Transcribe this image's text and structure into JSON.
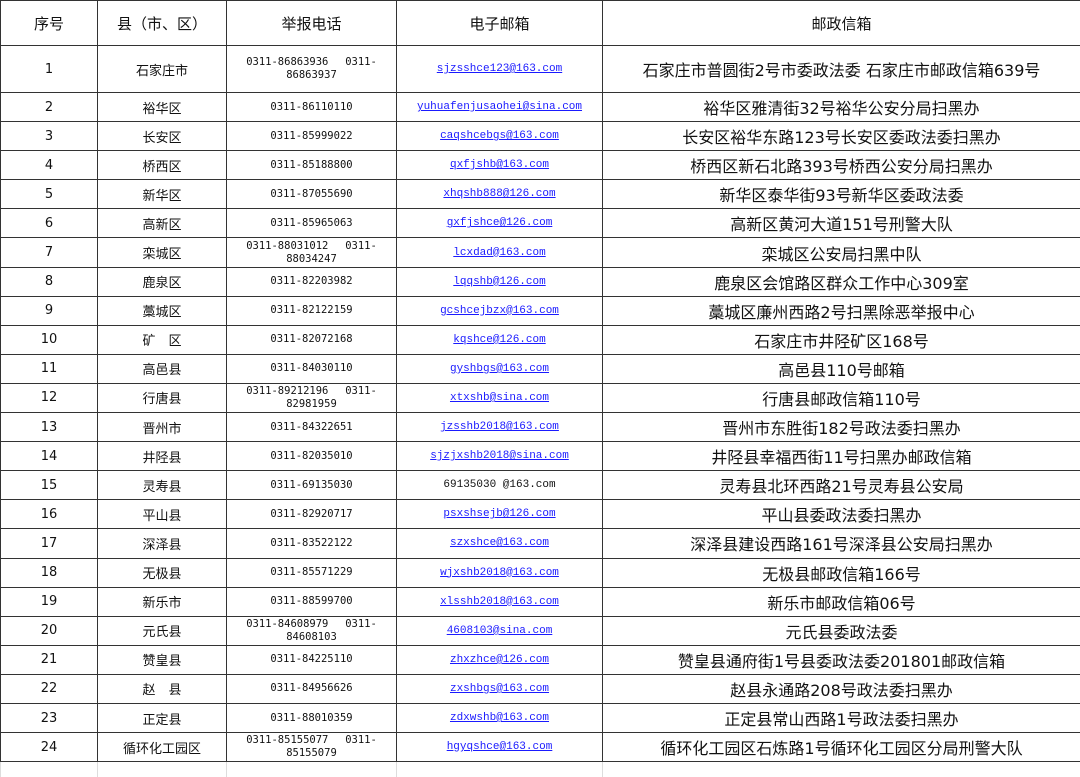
{
  "headers": [
    "序号",
    "县（市、区）",
    "举报电话",
    "电子邮箱",
    "邮政信箱"
  ],
  "rows": [
    {
      "no": "1",
      "county": "石家庄市",
      "phone": "0311-86863936　 0311-86863937",
      "email": "sjzsshce123@163.com",
      "addr": "石家庄市普圆街2号市委政法委 石家庄市邮政信箱639号"
    },
    {
      "no": "2",
      "county": "裕华区",
      "phone": "0311-86110110",
      "email": "yuhuafenjusaohei@sina.com",
      "addr": "裕华区雅清街32号裕华公安分局扫黑办"
    },
    {
      "no": "3",
      "county": "长安区",
      "phone": "0311-85999022",
      "email": "caqshcebgs@163.com",
      "addr": "长安区裕华东路123号长安区委政法委扫黑办"
    },
    {
      "no": "4",
      "county": "桥西区",
      "phone": "0311-85188800",
      "email": "qxfjshb@163.com",
      "addr": "桥西区新石北路393号桥西公安分局扫黑办"
    },
    {
      "no": "5",
      "county": "新华区",
      "phone": "0311-87055690",
      "email": "xhqshb888@126.com",
      "addr": "新华区泰华街93号新华区委政法委"
    },
    {
      "no": "6",
      "county": "高新区",
      "phone": "0311-85965063",
      "email": "gxfjshce@126.com",
      "addr": "高新区黄河大道151号刑警大队"
    },
    {
      "no": "7",
      "county": "栾城区",
      "phone": "0311-88031012　 0311-88034247",
      "email": "lcxdad@163.com",
      "addr": "栾城区公安局扫黑中队"
    },
    {
      "no": "8",
      "county": "鹿泉区",
      "phone": "0311-82203982",
      "email": "lqqshb@126.com",
      "addr": "鹿泉区会馆路区群众工作中心309室"
    },
    {
      "no": "9",
      "county": "藁城区",
      "phone": "0311-82122159",
      "email": "gcshcejbzx@163.com",
      "addr": "藁城区廉州西路2号扫黑除恶举报中心"
    },
    {
      "no": "10",
      "county": "矿　区",
      "phone": "0311-82072168",
      "email": "kqshce@126.com",
      "addr": "石家庄市井陉矿区168号"
    },
    {
      "no": "11",
      "county": "高邑县",
      "phone": "0311-84030110",
      "email": "gyshbgs@163.com",
      "addr": "高邑县110号邮箱"
    },
    {
      "no": "12",
      "county": "行唐县",
      "phone": "0311-89212196　 0311-82981959",
      "email": "xtxshb@sina.com",
      "addr": "行唐县邮政信箱110号"
    },
    {
      "no": "13",
      "county": "晋州市",
      "phone": "0311-84322651",
      "email": "jzsshb2018@163.com",
      "addr": "晋州市东胜街182号政法委扫黑办"
    },
    {
      "no": "14",
      "county": "井陉县",
      "phone": "0311-82035010",
      "email": "sjzjxshb2018@sina.com",
      "addr": "井陉县幸福西街11号扫黑办邮政信箱"
    },
    {
      "no": "15",
      "county": "灵寿县",
      "phone": "0311-69135030",
      "email": "69135030 @163.com",
      "addr": "灵寿县北环西路21号灵寿县公安局"
    },
    {
      "no": "16",
      "county": "平山县",
      "phone": "0311-82920717",
      "email": "psxshsejb@126.com",
      "addr": "平山县委政法委扫黑办"
    },
    {
      "no": "17",
      "county": "深泽县",
      "phone": "0311-83522122",
      "email": "szxshce@163.com",
      "addr": "深泽县建设西路161号深泽县公安局扫黑办"
    },
    {
      "no": "18",
      "county": "无极县",
      "phone": "0311-85571229",
      "email": "wjxshb2018@163.com",
      "addr": "无极县邮政信箱166号"
    },
    {
      "no": "19",
      "county": "新乐市",
      "phone": "0311-88599700",
      "email": "xlsshb2018@163.com",
      "addr": "新乐市邮政信箱06号"
    },
    {
      "no": "20",
      "county": "元氏县",
      "phone": "0311-84608979　 0311-84608103",
      "email": "4608103@sina.com",
      "addr": "元氏县委政法委"
    },
    {
      "no": "21",
      "county": "赞皇县",
      "phone": "0311-84225110",
      "email": "zhxzhce@126.com",
      "addr": "赞皇县通府街1号县委政法委201801邮政信箱"
    },
    {
      "no": "22",
      "county": "赵　县",
      "phone": "0311-84956626",
      "email": "zxshbgs@163.com",
      "addr": "赵县永通路208号政法委扫黑办"
    },
    {
      "no": "23",
      "county": "正定县",
      "phone": "0311-88010359",
      "email": "zdxwshb@163.com",
      "addr": "正定县常山西路1号政法委扫黑办"
    },
    {
      "no": "24",
      "county": "循环化工园区",
      "phone": "0311-85155077　 0311-85155079",
      "email": "hgyqshce@163.com",
      "addr": "循环化工园区石炼路1号循环化工园区分局刑警大队"
    }
  ],
  "link_color": "#1a1aff"
}
